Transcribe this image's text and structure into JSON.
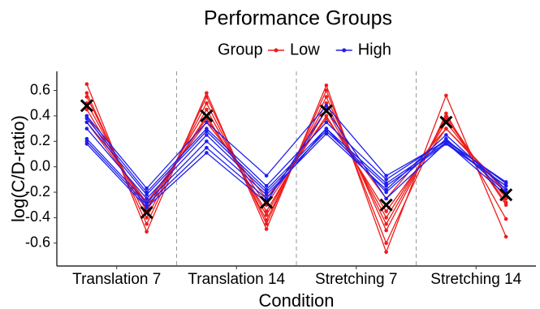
{
  "chart_data": {
    "type": "line",
    "title": "Performance Groups",
    "legend_title": "Group",
    "x_label": "Condition",
    "y_label": "log(C/D-ratio)",
    "x": [
      1,
      2,
      3,
      4,
      5,
      6,
      7,
      8
    ],
    "xlim": [
      0.5,
      8.5
    ],
    "xticks": [
      {
        "value": 1.5,
        "label": "Translation 7"
      },
      {
        "value": 3.5,
        "label": "Translation 14"
      },
      {
        "value": 5.5,
        "label": "Stretching 7"
      },
      {
        "value": 7.5,
        "label": "Stretching 14"
      }
    ],
    "ylim": [
      -0.78,
      0.75
    ],
    "yticks": [
      -0.6,
      -0.4,
      -0.2,
      {
        "value": 0,
        "label": "0.0"
      },
      0.2,
      0.4,
      0.6
    ],
    "series": [
      {
        "name": "Low",
        "color": "#ee1c1c",
        "values": [
          [
            0.65,
            -0.51,
            0.58,
            -0.49,
            0.64,
            -0.67,
            0.56,
            -0.55
          ],
          [
            0.58,
            -0.45,
            0.55,
            -0.45,
            0.6,
            -0.6,
            0.42,
            -0.41
          ],
          [
            0.55,
            -0.4,
            0.5,
            -0.42,
            0.55,
            -0.5,
            0.4,
            -0.3
          ],
          [
            0.5,
            -0.35,
            0.45,
            -0.38,
            0.5,
            -0.45,
            0.38,
            -0.28
          ],
          [
            0.45,
            -0.33,
            0.4,
            -0.35,
            0.45,
            -0.4,
            0.35,
            -0.25
          ],
          [
            0.4,
            -0.3,
            0.38,
            -0.3,
            0.4,
            -0.35,
            0.3,
            -0.2
          ],
          [
            0.35,
            -0.28,
            0.35,
            -0.25,
            0.38,
            -0.25,
            0.3,
            -0.18
          ]
        ]
      },
      {
        "name": "High",
        "color": "#1f1fee",
        "values": [
          [
            0.4,
            -0.17,
            0.35,
            -0.07,
            0.48,
            -0.07,
            0.2,
            -0.12
          ],
          [
            0.38,
            -0.2,
            0.3,
            -0.15,
            0.35,
            -0.1,
            0.21,
            -0.13
          ],
          [
            0.35,
            -0.22,
            0.28,
            -0.18,
            0.3,
            -0.13,
            0.19,
            -0.15
          ],
          [
            0.3,
            -0.25,
            0.25,
            -0.2,
            0.28,
            -0.15,
            0.18,
            -0.15
          ],
          [
            0.22,
            -0.28,
            0.2,
            -0.22,
            0.26,
            -0.18,
            0.25,
            -0.18
          ],
          [
            0.2,
            -0.3,
            0.15,
            -0.25,
            0.3,
            -0.2,
            0.22,
            -0.2
          ],
          [
            0.18,
            -0.32,
            0.11,
            -0.28,
            0.45,
            -0.25,
            0.19,
            -0.22
          ]
        ]
      }
    ],
    "means": [
      0.48,
      -0.36,
      0.4,
      -0.28,
      0.44,
      -0.3,
      0.35,
      -0.22
    ]
  }
}
